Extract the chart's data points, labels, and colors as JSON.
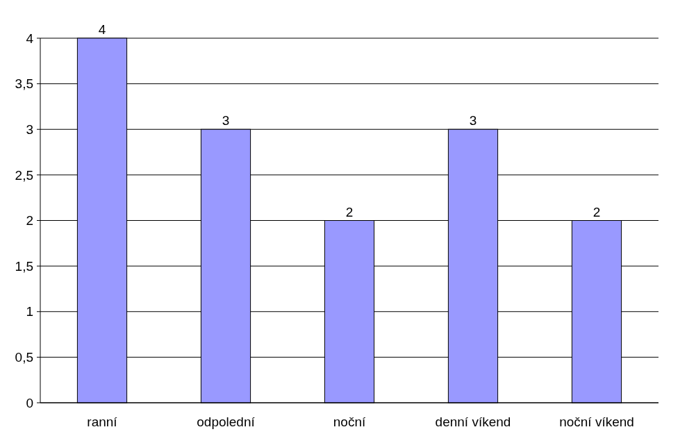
{
  "chart_data": {
    "type": "bar",
    "categories": [
      "ranní",
      "odpolední",
      "noční",
      "denní víkend",
      "noční víkend"
    ],
    "values": [
      4,
      3,
      2,
      3,
      2
    ],
    "color": "#9999ff",
    "ylim": [
      0,
      4
    ],
    "yticks": [
      0,
      {
        "value": 0.5,
        "label": "0,5"
      },
      1,
      {
        "value": 1.5,
        "label": "1,5"
      },
      2,
      {
        "value": 2.5,
        "label": "2,5"
      },
      3,
      {
        "value": 3.5,
        "label": "3,5"
      },
      4
    ],
    "grid": "y",
    "data_labels": true
  }
}
